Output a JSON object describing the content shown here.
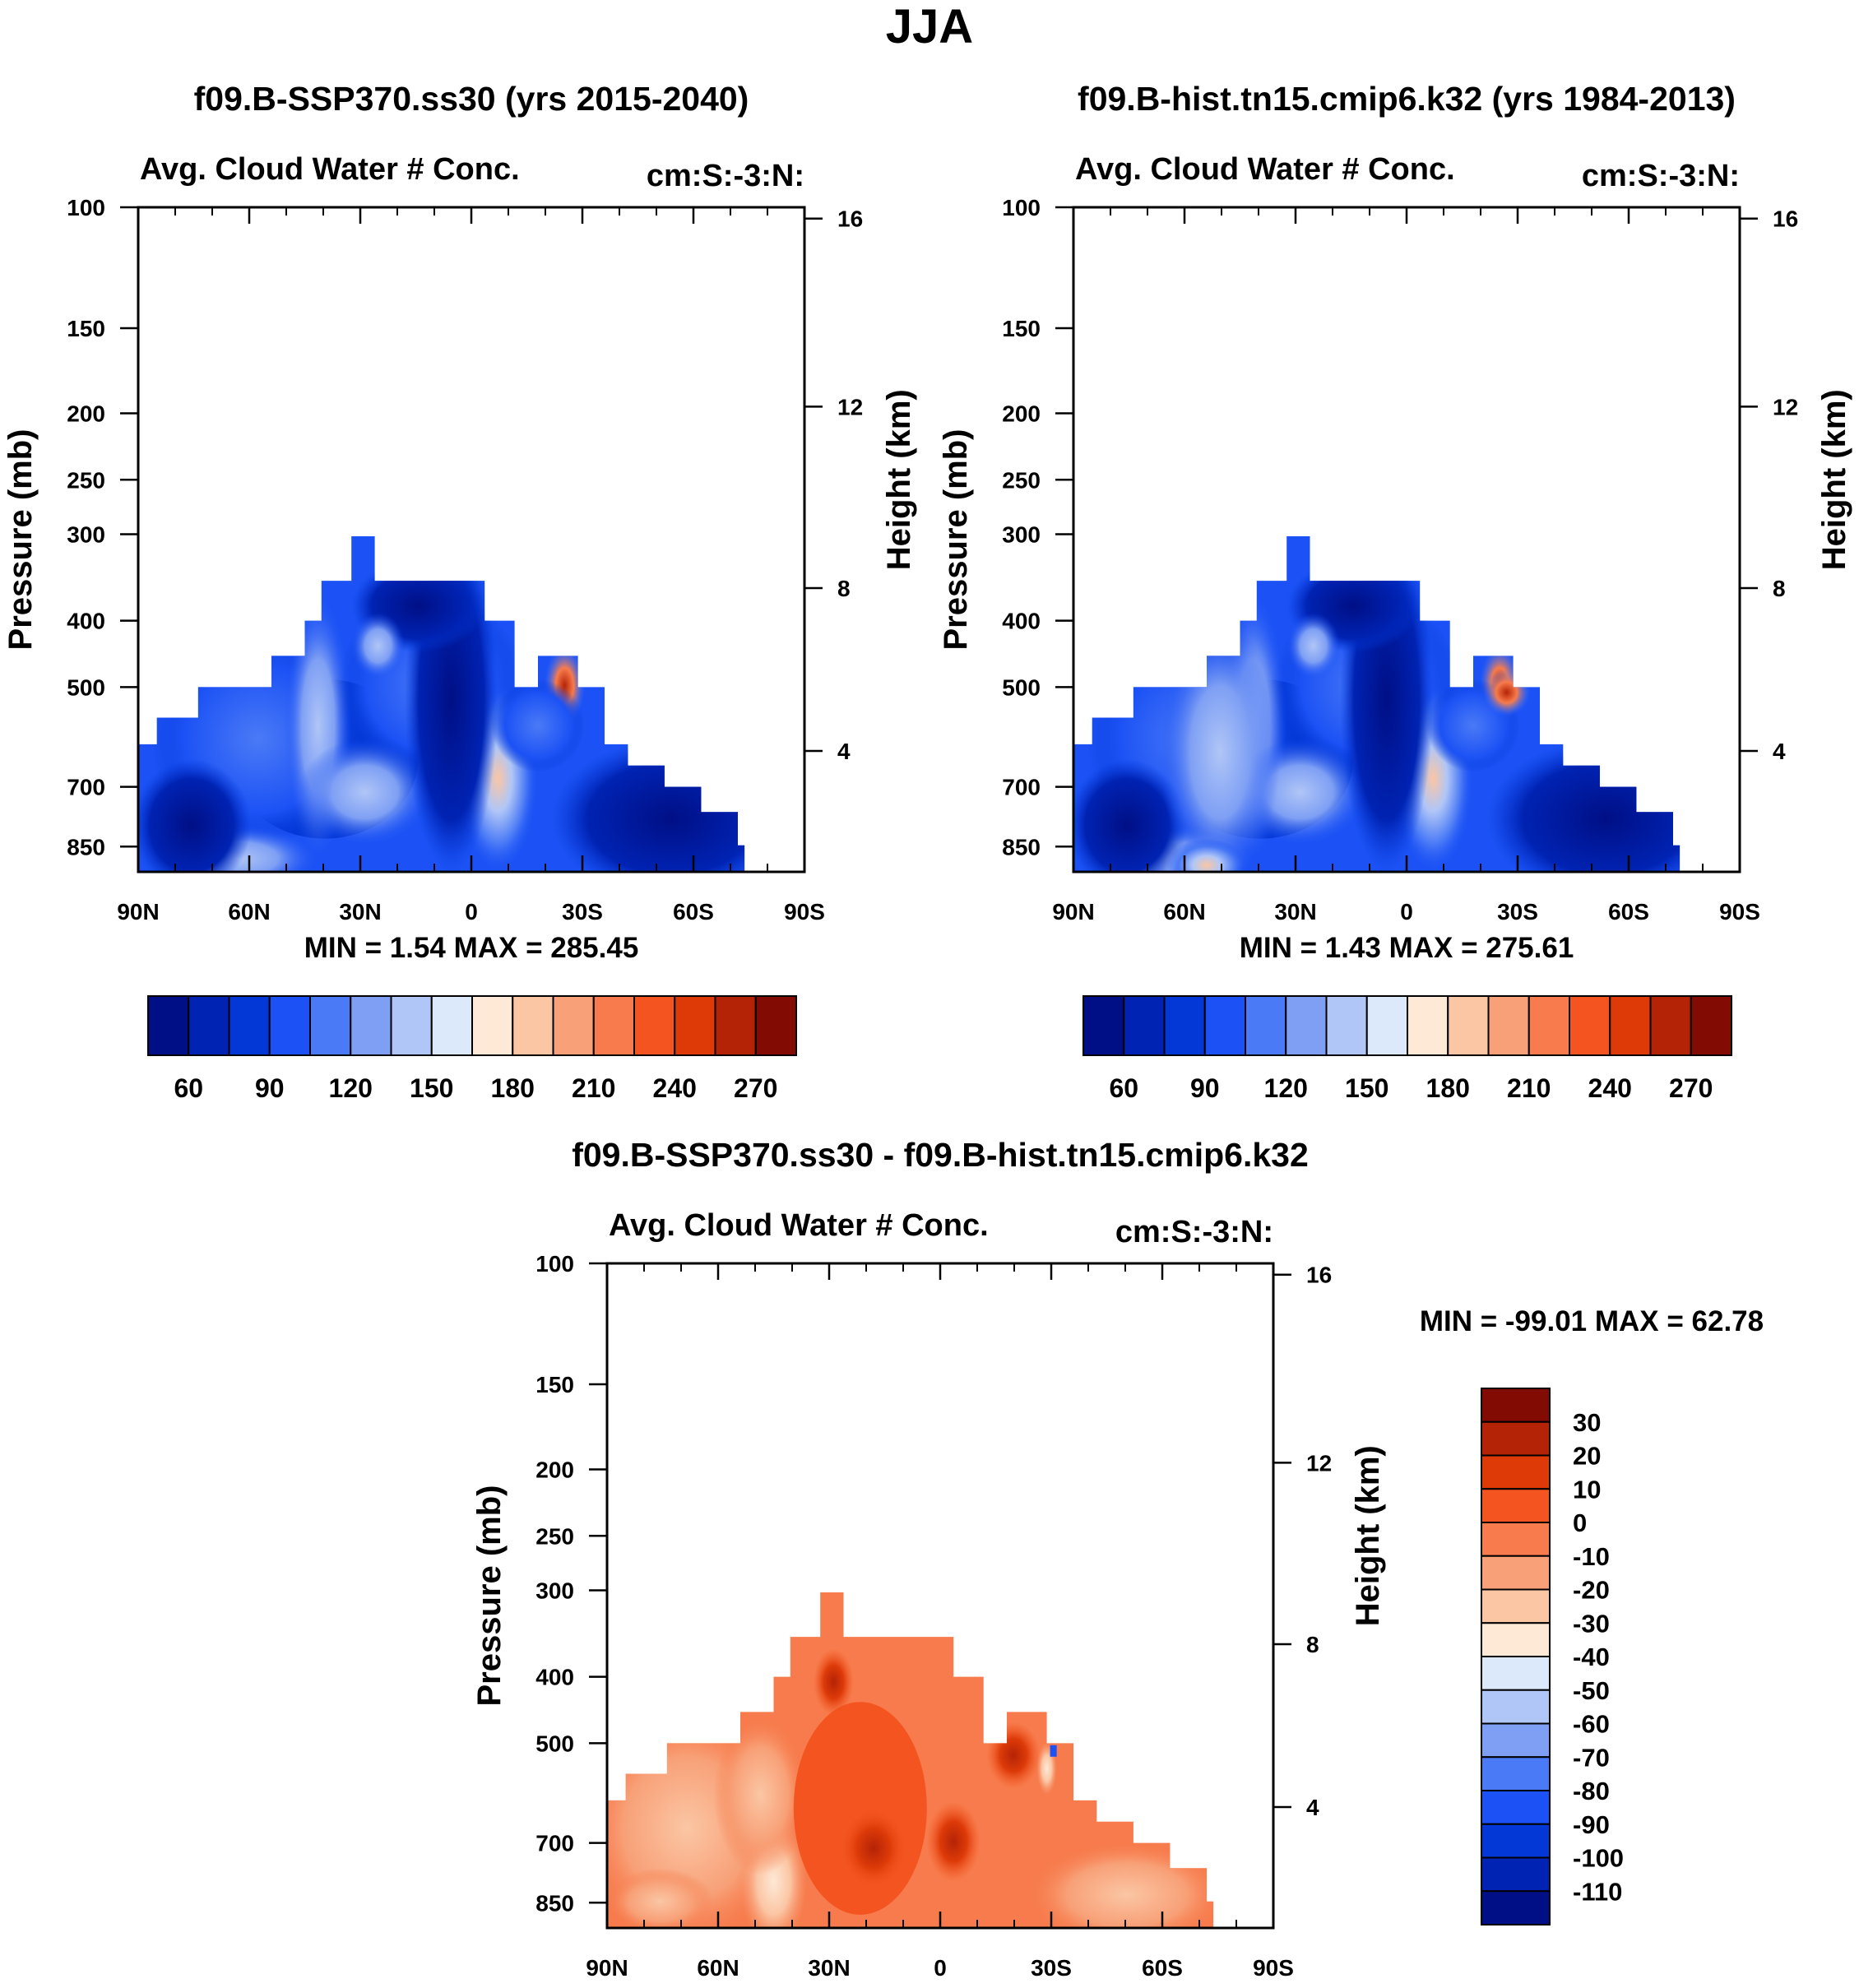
{
  "figure_title": "JJA",
  "chart_data": [
    {
      "type": "heatmap",
      "title": "f09.B-SSP370.ss30 (yrs 2015-2040)",
      "subtitle_left": "Avg. Cloud Water # Conc.",
      "subtitle_right": "cm:S:-3:N:",
      "ylabel": "Pressure (mb)",
      "y2label": "Height (km)",
      "xticks": [
        "90N",
        "60N",
        "30N",
        "0",
        "30S",
        "60S",
        "90S"
      ],
      "yticks": [
        "100",
        "150",
        "200",
        "250",
        "300",
        "400",
        "500",
        "700",
        "850"
      ],
      "y2ticks": [
        "16",
        "12",
        "8",
        "4"
      ],
      "stats": {
        "min_label": "MIN =",
        "min": "1.54",
        "max_label": "MAX =",
        "max": "285.45"
      },
      "colorbar": {
        "orientation": "horizontal",
        "colors": [
          "#000f86",
          "#0023b3",
          "#0337d6",
          "#1c52f5",
          "#4a7af6",
          "#7e9ff4",
          "#b0c6f7",
          "#dbe9fb",
          "#fde9d6",
          "#fbc6a4",
          "#f8a077",
          "#f77b4c",
          "#f4541f",
          "#dd3a08",
          "#b52306",
          "#820b04"
        ],
        "labels": [
          "60",
          "90",
          "120",
          "150",
          "180",
          "210",
          "240",
          "270"
        ]
      }
    },
    {
      "type": "heatmap",
      "title": "f09.B-hist.tn15.cmip6.k32 (yrs 1984-2013)",
      "subtitle_left": "Avg. Cloud Water # Conc.",
      "subtitle_right": "cm:S:-3:N:",
      "ylabel": "Pressure (mb)",
      "y2label": "Height (km)",
      "xticks": [
        "90N",
        "60N",
        "30N",
        "0",
        "30S",
        "60S",
        "90S"
      ],
      "yticks": [
        "100",
        "150",
        "200",
        "250",
        "300",
        "400",
        "500",
        "700",
        "850"
      ],
      "y2ticks": [
        "16",
        "12",
        "8",
        "4"
      ],
      "stats": {
        "min_label": "MIN =",
        "min": "1.43",
        "max_label": "MAX =",
        "max": "275.61"
      },
      "colorbar": {
        "orientation": "horizontal",
        "colors": [
          "#000f86",
          "#0023b3",
          "#0337d6",
          "#1c52f5",
          "#4a7af6",
          "#7e9ff4",
          "#b0c6f7",
          "#dbe9fb",
          "#fde9d6",
          "#fbc6a4",
          "#f8a077",
          "#f77b4c",
          "#f4541f",
          "#dd3a08",
          "#b52306",
          "#820b04"
        ],
        "labels": [
          "60",
          "90",
          "120",
          "150",
          "180",
          "210",
          "240",
          "270"
        ]
      }
    },
    {
      "type": "heatmap",
      "title": "f09.B-SSP370.ss30 - f09.B-hist.tn15.cmip6.k32",
      "subtitle_left": "Avg. Cloud Water # Conc.",
      "subtitle_right": "cm:S:-3:N:",
      "ylabel": "Pressure (mb)",
      "y2label": "Height (km)",
      "xticks": [
        "90N",
        "60N",
        "30N",
        "0",
        "30S",
        "60S",
        "90S"
      ],
      "yticks": [
        "100",
        "150",
        "200",
        "250",
        "300",
        "400",
        "500",
        "700",
        "850"
      ],
      "y2ticks": [
        "16",
        "12",
        "8",
        "4"
      ],
      "stats": {
        "min_label": "MIN =",
        "min": "-99.01",
        "max_label": "MAX =",
        "max": "62.78"
      },
      "colorbar": {
        "orientation": "vertical",
        "colors": [
          "#820b04",
          "#b52306",
          "#dd3a08",
          "#f4541f",
          "#f77b4c",
          "#f8a077",
          "#fbc6a4",
          "#fde9d6",
          "#dbe9fb",
          "#b0c6f7",
          "#7e9ff4",
          "#4a7af6",
          "#1c52f5",
          "#0337d6",
          "#0023b3",
          "#000f86"
        ],
        "labels": [
          "30",
          "20",
          "10",
          "0",
          "-10",
          "-20",
          "-30",
          "-40",
          "-50",
          "-60",
          "-70",
          "-80",
          "-90",
          "-100",
          "-110"
        ]
      }
    }
  ]
}
